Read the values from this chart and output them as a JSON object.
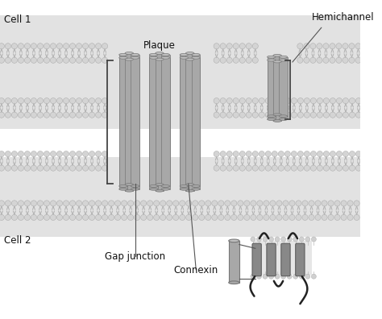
{
  "white": "#ffffff",
  "cell_bg": "#e2e2e2",
  "gap_bg": "#ffffff",
  "mem_head_color": "#d8d8d8",
  "mem_tail_color": "#bbbbbb",
  "cyl_color": "#a8a8a8",
  "cyl_top_color": "#c8c8c8",
  "cyl_edge": "#777777",
  "bracket_color": "#444444",
  "text_color": "#111111",
  "line_color": "#555555",
  "protein_color": "#888888",
  "cell1_label": "Cell 1",
  "cell2_label": "Cell 2",
  "plaque_label": "Plaque",
  "gap_junction_label": "Gap junction",
  "hemichannel_label": "Hemichannel",
  "connexin_label": "Connexin",
  "fig_width": 4.74,
  "fig_height": 3.96,
  "dpi": 100
}
